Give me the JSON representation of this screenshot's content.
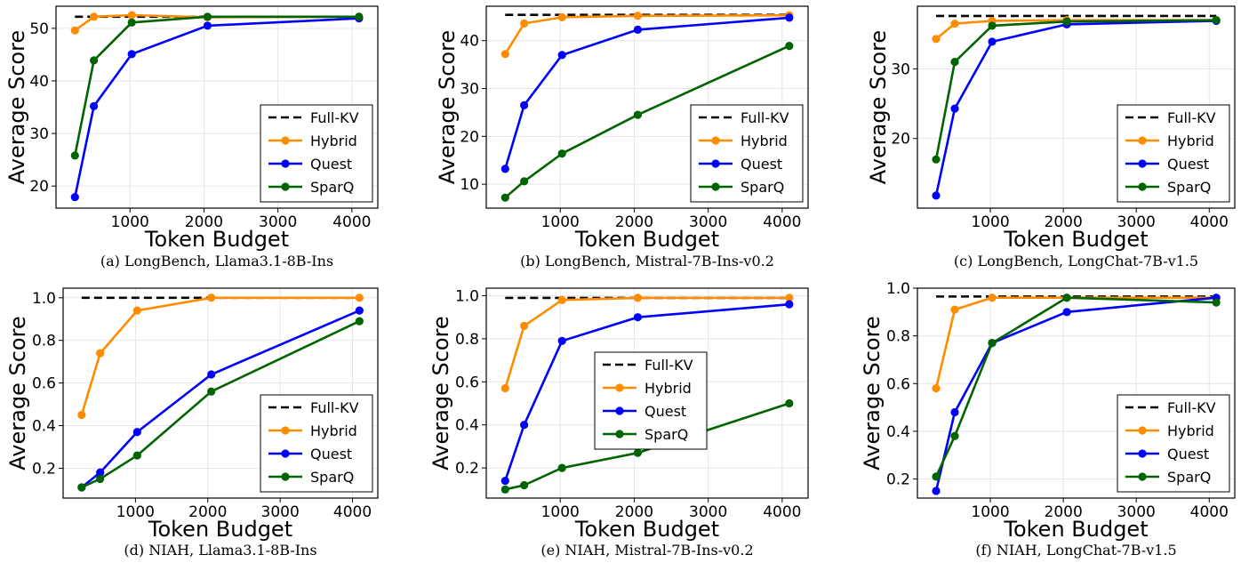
{
  "colors": {
    "full_kv": "#000000",
    "hybrid": "#ff8c00",
    "quest": "#0000ff",
    "sparq": "#006400",
    "grid": "#e6e6e6",
    "frame": "#000000"
  },
  "chart_data": [
    {
      "type": "line",
      "caption": "(a) LongBench, Llama3.1-8B-Ins",
      "xlabel": "Token Budget",
      "ylabel": "Average Score",
      "x": [
        256,
        512,
        1024,
        2048,
        4096
      ],
      "xlim": [
        0,
        4350
      ],
      "xticks": [
        1000,
        2000,
        3000,
        4000
      ],
      "ylim": [
        15.8,
        54.2
      ],
      "yticks": [
        20,
        30,
        40,
        50
      ],
      "reference": {
        "name": "Full-KV",
        "value": 52.2
      },
      "series": [
        {
          "name": "Hybrid",
          "values": [
            49.6,
            52.2,
            52.5,
            52.1,
            52.2
          ]
        },
        {
          "name": "Quest",
          "values": [
            17.9,
            35.2,
            45.1,
            50.5,
            51.9
          ]
        },
        {
          "name": "SparQ",
          "values": [
            25.8,
            43.9,
            51.1,
            52.2,
            52.2
          ]
        }
      ],
      "legend_position": "lower-right",
      "grid": true
    },
    {
      "type": "line",
      "caption": "(b) LongBench, Mistral-7B-Ins-v0.2",
      "xlabel": "Token Budget",
      "ylabel": "Average Score",
      "x": [
        256,
        512,
        1024,
        2048,
        4096
      ],
      "xlim": [
        0,
        4350
      ],
      "xticks": [
        1000,
        2000,
        3000,
        4000
      ],
      "ylim": [
        5.0,
        47.2
      ],
      "yticks": [
        10,
        20,
        30,
        40
      ],
      "reference": {
        "name": "Full-KV",
        "value": 45.4
      },
      "series": [
        {
          "name": "Hybrid",
          "values": [
            37.2,
            43.6,
            44.9,
            45.2,
            45.3
          ]
        },
        {
          "name": "Quest",
          "values": [
            13.2,
            26.5,
            37.0,
            42.3,
            44.8
          ]
        },
        {
          "name": "SparQ",
          "values": [
            7.2,
            10.6,
            16.4,
            24.5,
            38.9
          ]
        }
      ],
      "legend_position": "lower-right",
      "grid": true
    },
    {
      "type": "line",
      "caption": "(c) LongBench, LongChat-7B-v1.5",
      "xlabel": "Token Budget",
      "ylabel": "Average Score",
      "x": [
        256,
        512,
        1024,
        2048,
        4096
      ],
      "xlim": [
        0,
        4350
      ],
      "xticks": [
        1000,
        2000,
        3000,
        4000
      ],
      "yticks": [
        20,
        30
      ],
      "ylim": [
        10.0,
        39.0
      ],
      "reference": {
        "name": "Full-KV",
        "value": 37.6
      },
      "series": [
        {
          "name": "Hybrid",
          "values": [
            34.3,
            36.5,
            36.9,
            37.0,
            37.0
          ]
        },
        {
          "name": "Quest",
          "values": [
            11.8,
            24.3,
            33.9,
            36.4,
            36.9
          ]
        },
        {
          "name": "SparQ",
          "values": [
            17.0,
            31.0,
            36.2,
            36.8,
            37.0
          ]
        }
      ],
      "legend_position": "lower-right",
      "grid": true
    },
    {
      "type": "line",
      "caption": "(d) NIAH, Llama3.1-8B-Ins",
      "xlabel": "Token Budget",
      "ylabel": "Average Score",
      "x": [
        256,
        512,
        1024,
        2048,
        4096
      ],
      "xlim": [
        0,
        4350
      ],
      "xticks": [
        1000,
        2000,
        3000,
        4000
      ],
      "ylim": [
        0.06,
        1.045
      ],
      "yticks": [
        "0.2",
        "0.4",
        "0.6",
        "0.8",
        "1.0"
      ],
      "reference": {
        "name": "Full-KV",
        "value": 1.0
      },
      "series": [
        {
          "name": "Hybrid",
          "values": [
            0.45,
            0.74,
            0.94,
            1.0,
            1.0
          ]
        },
        {
          "name": "Quest",
          "values": [
            0.11,
            0.18,
            0.37,
            0.64,
            0.94
          ]
        },
        {
          "name": "SparQ",
          "values": [
            0.11,
            0.15,
            0.26,
            0.56,
            0.89
          ]
        }
      ],
      "legend_position": "lower-right",
      "grid": true
    },
    {
      "type": "line",
      "caption": "(e) NIAH, Mistral-7B-Ins-v0.2",
      "xlabel": "Token Budget",
      "ylabel": "Average Score",
      "x": [
        256,
        512,
        1024,
        2048,
        4096
      ],
      "xlim": [
        0,
        4350
      ],
      "xticks": [
        1000,
        2000,
        3000,
        4000
      ],
      "ylim": [
        0.06,
        1.035
      ],
      "yticks": [
        "0.2",
        "0.4",
        "0.6",
        "0.8",
        "1.0"
      ],
      "reference": {
        "name": "Full-KV",
        "value": 0.99
      },
      "series": [
        {
          "name": "Hybrid",
          "values": [
            0.57,
            0.86,
            0.98,
            0.99,
            0.99
          ]
        },
        {
          "name": "Quest",
          "values": [
            0.14,
            0.4,
            0.79,
            0.9,
            0.96
          ]
        },
        {
          "name": "SparQ",
          "values": [
            0.1,
            0.12,
            0.2,
            0.27,
            0.5
          ]
        }
      ],
      "legend_position": "center",
      "grid": true
    },
    {
      "type": "line",
      "caption": "(f) NIAH, LongChat-7B-v1.5",
      "xlabel": "Token Budget",
      "ylabel": "Average Score",
      "x": [
        256,
        512,
        1024,
        2048,
        4096
      ],
      "xlim": [
        0,
        4350
      ],
      "xticks": [
        1000,
        2000,
        3000,
        4000
      ],
      "ylim": [
        0.12,
        1.0
      ],
      "yticks": [
        "0.2",
        "0.4",
        "0.6",
        "0.8",
        "1.0"
      ],
      "reference": {
        "name": "Full-KV",
        "value": 0.965
      },
      "series": [
        {
          "name": "Hybrid",
          "values": [
            0.58,
            0.91,
            0.96,
            0.96,
            0.96
          ]
        },
        {
          "name": "Quest",
          "values": [
            0.15,
            0.48,
            0.77,
            0.9,
            0.96
          ]
        },
        {
          "name": "SparQ",
          "values": [
            0.21,
            0.38,
            0.77,
            0.96,
            0.94
          ]
        }
      ],
      "legend_position": "lower-right",
      "grid": true
    }
  ]
}
